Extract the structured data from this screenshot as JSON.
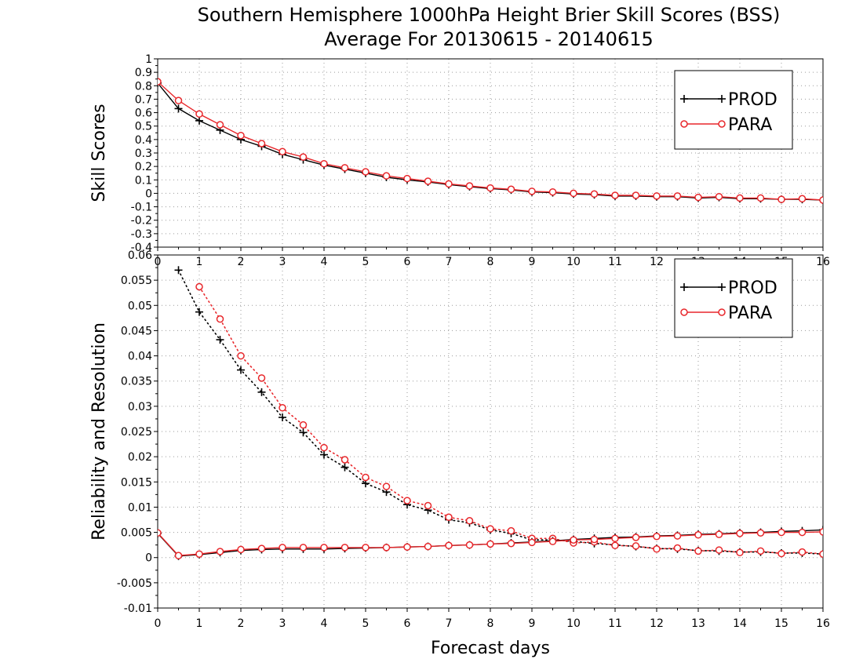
{
  "chart_data": {
    "type": "line",
    "title": "Southern Hemisphere 1000hPa Height Brier Skill Scores (BSS)",
    "subtitle": "Average For 20130615 - 20140615",
    "xlabel": "Forecast days",
    "xlim": [
      0,
      16
    ],
    "x_ticks": [
      "0",
      "1",
      "2",
      "3",
      "4",
      "5",
      "6",
      "7",
      "8",
      "9",
      "10",
      "11",
      "12",
      "13",
      "14",
      "15",
      "16"
    ],
    "colors": {
      "prod": "#000000",
      "para": "#e8272b",
      "grid": "#9a9a9a"
    },
    "panels": [
      {
        "name": "skill-scores",
        "ylabel": "Skill Scores",
        "ylim": [
          -0.4,
          1.0
        ],
        "y_ticks": [
          "-0.4",
          "-0.3",
          "-0.2",
          "-0.1",
          "0",
          "0.1",
          "0.2",
          "0.3",
          "0.4",
          "0.5",
          "0.6",
          "0.7",
          "0.8",
          "0.9",
          "1"
        ],
        "legend": {
          "placement": "top-right",
          "entries": [
            "PROD",
            "PARA"
          ]
        },
        "series": [
          {
            "name": "PROD",
            "style": "solid",
            "marker": "plus",
            "x": [
              0,
              0.5,
              1,
              1.5,
              2,
              2.5,
              3,
              3.5,
              4,
              4.5,
              5,
              5.5,
              6,
              6.5,
              7,
              7.5,
              8,
              8.5,
              9,
              9.5,
              10,
              10.5,
              11,
              11.5,
              12,
              12.5,
              13,
              13.5,
              14,
              14.5,
              15,
              15.5,
              16
            ],
            "y": [
              0.82,
              0.63,
              0.54,
              0.47,
              0.4,
              0.35,
              0.29,
              0.25,
              0.21,
              0.18,
              0.15,
              0.12,
              0.1,
              0.085,
              0.065,
              0.05,
              0.035,
              0.025,
              0.01,
              0.005,
              -0.005,
              -0.01,
              -0.02,
              -0.02,
              -0.025,
              -0.025,
              -0.035,
              -0.03,
              -0.04,
              -0.04,
              -0.045,
              -0.045,
              -0.05
            ]
          },
          {
            "name": "PARA",
            "style": "solid",
            "marker": "circle",
            "x": [
              0,
              0.5,
              1,
              1.5,
              2,
              2.5,
              3,
              3.5,
              4,
              4.5,
              5,
              5.5,
              6,
              6.5,
              7,
              7.5,
              8,
              8.5,
              9,
              9.5,
              10,
              10.5,
              11,
              11.5,
              12,
              12.5,
              13,
              13.5,
              14,
              14.5,
              15,
              15.5,
              16
            ],
            "y": [
              0.83,
              0.69,
              0.59,
              0.51,
              0.43,
              0.37,
              0.31,
              0.27,
              0.22,
              0.19,
              0.16,
              0.13,
              0.11,
              0.09,
              0.07,
              0.055,
              0.04,
              0.03,
              0.015,
              0.01,
              0.0,
              -0.005,
              -0.015,
              -0.015,
              -0.02,
              -0.02,
              -0.03,
              -0.025,
              -0.035,
              -0.035,
              -0.045,
              -0.04,
              -0.05
            ]
          }
        ]
      },
      {
        "name": "reliability-resolution",
        "ylabel": "Reliability and Resolution",
        "ylim": [
          -0.01,
          0.06
        ],
        "y_ticks": [
          "-0.01",
          "-0.005",
          "0",
          "0.005",
          "0.01",
          "0.015",
          "0.02",
          "0.025",
          "0.03",
          "0.035",
          "0.04",
          "0.045",
          "0.05",
          "0.055",
          "0.06"
        ],
        "legend": {
          "placement": "top-right",
          "entries": [
            "PROD",
            "PARA"
          ]
        },
        "series": [
          {
            "name": "PROD",
            "kind": "resolution",
            "style": "dotted",
            "marker": "plus",
            "x": [
              0.5,
              1,
              1.5,
              2,
              2.5,
              3,
              3.5,
              4,
              4.5,
              5,
              5.5,
              6,
              6.5,
              7,
              7.5,
              8,
              8.5,
              9,
              9.5,
              10,
              10.5,
              11,
              11.5,
              12,
              12.5,
              13,
              13.5,
              14,
              14.5,
              15,
              15.5,
              16
            ],
            "y": [
              0.057,
              0.0487,
              0.0432,
              0.0372,
              0.0328,
              0.0278,
              0.0248,
              0.0204,
              0.0179,
              0.0147,
              0.013,
              0.0105,
              0.0094,
              0.0075,
              0.0069,
              0.0055,
              0.0048,
              0.0035,
              0.0035,
              0.0032,
              0.0028,
              0.0025,
              0.0022,
              0.0018,
              0.0017,
              0.0014,
              0.0013,
              0.0011,
              0.0011,
              0.0009,
              0.0009,
              0.0007
            ]
          },
          {
            "name": "PARA",
            "kind": "resolution",
            "style": "dotted",
            "marker": "circle",
            "x": [
              1,
              1.5,
              2,
              2.5,
              3,
              3.5,
              4,
              4.5,
              5,
              5.5,
              6,
              6.5,
              7,
              7.5,
              8,
              8.5,
              9,
              9.5,
              10,
              10.5,
              11,
              11.5,
              12,
              12.5,
              13,
              13.5,
              14,
              14.5,
              15,
              15.5,
              16
            ],
            "y": [
              0.0537,
              0.0473,
              0.04,
              0.0356,
              0.0297,
              0.0263,
              0.0218,
              0.0194,
              0.0159,
              0.0141,
              0.0113,
              0.0103,
              0.008,
              0.0073,
              0.0057,
              0.0053,
              0.0038,
              0.0038,
              0.0029,
              0.0031,
              0.0024,
              0.0023,
              0.0017,
              0.0019,
              0.0013,
              0.0015,
              0.001,
              0.0013,
              0.0008,
              0.0011,
              0.0007
            ]
          },
          {
            "name": "PROD",
            "kind": "reliability",
            "style": "solid",
            "marker": "plus",
            "x": [
              0,
              0.5,
              1,
              1.5,
              2,
              2.5,
              3,
              3.5,
              4,
              4.5,
              5,
              5.5,
              6,
              6.5,
              7,
              7.5,
              8,
              8.5,
              9,
              9.5,
              10,
              10.5,
              11,
              11.5,
              12,
              12.5,
              13,
              13.5,
              14,
              14.5,
              15,
              15.5,
              16
            ],
            "y": [
              0.0048,
              0.0003,
              0.0006,
              0.001,
              0.0014,
              0.0016,
              0.0017,
              0.0017,
              0.0017,
              0.0018,
              0.0019,
              0.002,
              0.0021,
              0.0022,
              0.0024,
              0.0025,
              0.0027,
              0.0029,
              0.0031,
              0.0033,
              0.0036,
              0.0038,
              0.004,
              0.0041,
              0.0043,
              0.0044,
              0.0046,
              0.0047,
              0.0049,
              0.005,
              0.0052,
              0.0053,
              0.0055
            ]
          },
          {
            "name": "PARA",
            "kind": "reliability",
            "style": "solid",
            "marker": "circle",
            "x": [
              0,
              0.5,
              1,
              1.5,
              2,
              2.5,
              3,
              3.5,
              4,
              4.5,
              5,
              5.5,
              6,
              6.5,
              7,
              7.5,
              8,
              8.5,
              9,
              9.5,
              10,
              10.5,
              11,
              11.5,
              12,
              12.5,
              13,
              13.5,
              14,
              14.5,
              15,
              15.5,
              16
            ],
            "y": [
              0.0049,
              0.0004,
              0.0007,
              0.0012,
              0.0016,
              0.0018,
              0.002,
              0.002,
              0.002,
              0.002,
              0.002,
              0.002,
              0.0021,
              0.0022,
              0.0024,
              0.0025,
              0.0027,
              0.0028,
              0.003,
              0.0032,
              0.0035,
              0.0036,
              0.0038,
              0.004,
              0.0042,
              0.0043,
              0.0045,
              0.0046,
              0.0048,
              0.0049,
              0.005,
              0.005,
              0.0051
            ]
          }
        ]
      }
    ]
  }
}
